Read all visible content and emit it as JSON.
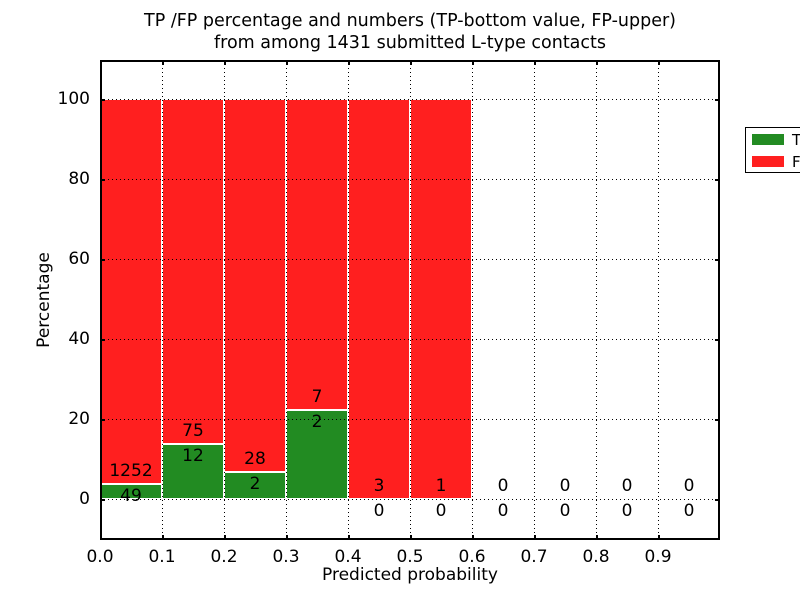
{
  "title": {
    "line1": "TP /FP percentage and numbers (TP-bottom value, FP-upper)",
    "line2": "from among 1431 submitted L-type contacts"
  },
  "axes": {
    "xlabel": "Predicted probability",
    "ylabel": "Percentage",
    "xtick_labels": [
      "0.0",
      "0.1",
      "0.2",
      "0.3",
      "0.4",
      "0.5",
      "0.6",
      "0.7",
      "0.8",
      "0.9"
    ],
    "ytick_labels": [
      "0",
      "20",
      "40",
      "60",
      "80",
      "100"
    ]
  },
  "legend": {
    "items": [
      {
        "label": "TP",
        "color": "#228B22"
      },
      {
        "label": "FP",
        "color": "#ff1f1f"
      }
    ]
  },
  "colors": {
    "tp_green": "#228B22",
    "fp_red": "#ff1f1f",
    "bar_edge": "#ffffff",
    "grid": "#000000"
  },
  "bar_count_labels": {
    "fp_upper": [
      "1252",
      "75",
      "28",
      "7",
      "3",
      "1",
      "0",
      "0",
      "0",
      "0"
    ],
    "tp_bottom": [
      "49",
      "12",
      "2",
      "2",
      "0",
      "0",
      "0",
      "0",
      "0",
      "0"
    ]
  },
  "chart_data": {
    "type": "bar",
    "stacked": true,
    "title": "TP /FP percentage and numbers (TP-bottom value, FP-upper) from among 1431 submitted L-type contacts",
    "xlabel": "Predicted probability",
    "ylabel": "Percentage",
    "xlim": [
      0.0,
      1.0
    ],
    "ylim": [
      -10,
      110
    ],
    "xticks": [
      0.0,
      0.1,
      0.2,
      0.3,
      0.4,
      0.5,
      0.6,
      0.7,
      0.8,
      0.9
    ],
    "yticks": [
      0,
      20,
      40,
      60,
      80,
      100
    ],
    "grid": "dotted, drawn over bars",
    "legend_position": "upper right",
    "bin_edges": [
      0.0,
      0.1,
      0.2,
      0.3,
      0.4,
      0.5,
      0.6,
      0.7,
      0.8,
      0.9,
      1.0
    ],
    "categories": [
      "0.0-0.1",
      "0.1-0.2",
      "0.2-0.3",
      "0.3-0.4",
      "0.4-0.5",
      "0.5-0.6",
      "0.6-0.7",
      "0.7-0.8",
      "0.8-0.9",
      "0.9-1.0"
    ],
    "series": [
      {
        "name": "TP",
        "color": "#228B22",
        "counts": [
          49,
          12,
          2,
          2,
          0,
          0,
          0,
          0,
          0,
          0
        ],
        "percent_of_bin": [
          3.77,
          13.79,
          6.67,
          22.22,
          0,
          0,
          0,
          0,
          0,
          0
        ]
      },
      {
        "name": "FP",
        "color": "#ff1f1f",
        "counts": [
          1252,
          75,
          28,
          7,
          3,
          1,
          0,
          0,
          0,
          0
        ],
        "percent_of_bin": [
          96.23,
          86.21,
          93.33,
          77.78,
          100,
          100,
          0,
          0,
          0,
          0
        ]
      }
    ],
    "total_contacts": 1431
  }
}
